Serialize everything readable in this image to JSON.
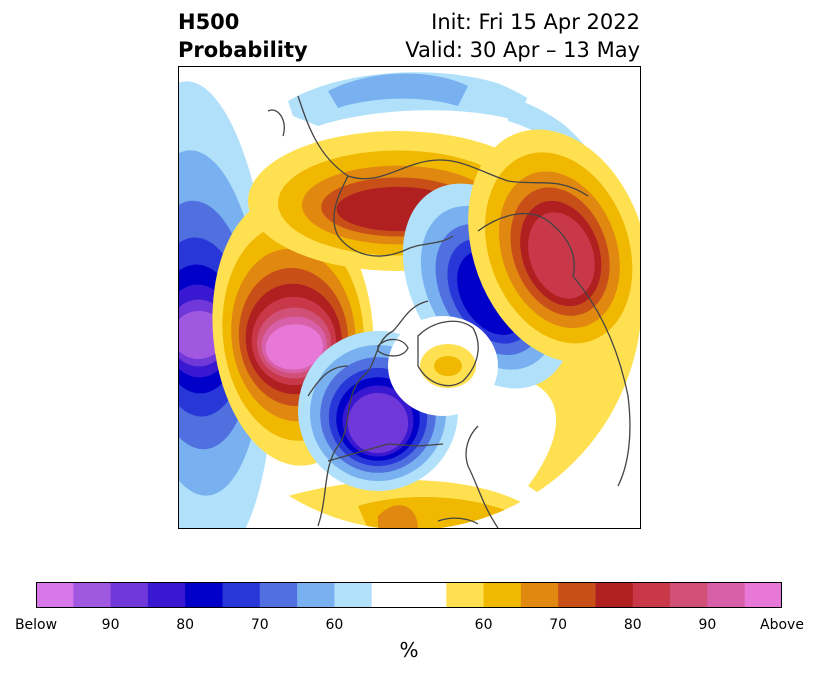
{
  "title": {
    "left_line1": "H500",
    "left_line2": "Probability",
    "right_line1": "Init: Fri 15 Apr 2022",
    "right_line2": "Valid: 30 Apr – 13 May"
  },
  "colorbar": {
    "colors": [
      "#d878e8",
      "#a058e0",
      "#7038d8",
      "#3818d0",
      "#0000c8",
      "#2838d8",
      "#5070e0",
      "#78b0f0",
      "#b0e0fa",
      "#ffffff",
      "#ffffff",
      "#ffe050",
      "#f0b800",
      "#e08810",
      "#c85018",
      "#b02020",
      "#c83848",
      "#d05078",
      "#d860a8",
      "#e878d8"
    ],
    "tick_labels": [
      "Below",
      "90",
      "80",
      "70",
      "60",
      "60",
      "70",
      "80",
      "90",
      "Above"
    ],
    "units_label": "%"
  },
  "map": {
    "projection": "north-polar-stereographic",
    "coastline_color": "#444444",
    "anomalies": [
      {
        "id": "pacific-low",
        "type": "below",
        "intensity": [
          1,
          1,
          1,
          1,
          1,
          1,
          1,
          1
        ]
      },
      {
        "id": "northwest-high",
        "type": "above",
        "intensity": [
          1,
          1,
          1,
          1,
          1,
          1,
          1,
          1,
          1
        ]
      },
      {
        "id": "canada-low",
        "type": "below",
        "intensity": [
          1,
          1,
          1,
          1,
          1,
          1,
          1
        ]
      },
      {
        "id": "europe-high",
        "type": "above",
        "intensity": [
          1,
          1,
          1,
          1,
          1
        ]
      },
      {
        "id": "arctic-low",
        "type": "below",
        "intensity": [
          1,
          1,
          1,
          1,
          1
        ]
      },
      {
        "id": "asia-high",
        "type": "above",
        "intensity": [
          1,
          1,
          1,
          1,
          1,
          1
        ]
      }
    ]
  }
}
